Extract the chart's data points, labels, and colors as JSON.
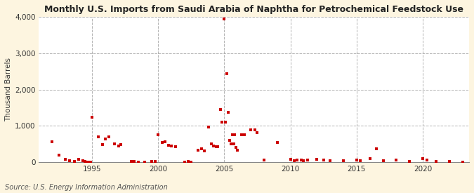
{
  "title": "Monthly U.S. Imports from Saudi Arabia of Naphtha for Petrochemical Feedstock Use",
  "ylabel": "Thousand Barrels",
  "source": "Source: U.S. Energy Information Administration",
  "background_color": "#FDF5E0",
  "plot_bg_color": "#FFFFFF",
  "marker_color": "#CC0000",
  "marker_size": 5,
  "ylim": [
    0,
    4000
  ],
  "yticks": [
    0,
    1000,
    2000,
    3000,
    4000
  ],
  "xlim_start": 1991.0,
  "xlim_end": 2023.5,
  "xticks": [
    1995,
    2000,
    2005,
    2010,
    2015,
    2020
  ],
  "data_points": [
    [
      1992.0,
      570
    ],
    [
      1992.5,
      200
    ],
    [
      1993.0,
      90
    ],
    [
      1993.3,
      50
    ],
    [
      1993.7,
      30
    ],
    [
      1994.0,
      80
    ],
    [
      1994.3,
      40
    ],
    [
      1994.5,
      20
    ],
    [
      1994.7,
      10
    ],
    [
      1994.9,
      5
    ],
    [
      1995.0,
      1240
    ],
    [
      1995.5,
      700
    ],
    [
      1995.8,
      480
    ],
    [
      1996.0,
      650
    ],
    [
      1996.3,
      700
    ],
    [
      1996.7,
      500
    ],
    [
      1997.0,
      450
    ],
    [
      1997.2,
      480
    ],
    [
      1998.0,
      30
    ],
    [
      1998.2,
      20
    ],
    [
      1998.5,
      10
    ],
    [
      1999.0,
      10
    ],
    [
      1999.5,
      15
    ],
    [
      1999.8,
      20
    ],
    [
      2000.0,
      760
    ],
    [
      2000.3,
      550
    ],
    [
      2000.5,
      560
    ],
    [
      2000.8,
      470
    ],
    [
      2001.0,
      450
    ],
    [
      2001.3,
      430
    ],
    [
      2002.0,
      10
    ],
    [
      2002.3,
      20
    ],
    [
      2002.5,
      10
    ],
    [
      2003.0,
      330
    ],
    [
      2003.3,
      380
    ],
    [
      2003.5,
      320
    ],
    [
      2003.8,
      970
    ],
    [
      2004.0,
      500
    ],
    [
      2004.2,
      450
    ],
    [
      2004.4,
      430
    ],
    [
      2004.5,
      430
    ],
    [
      2004.7,
      1450
    ],
    [
      2004.8,
      1100
    ],
    [
      2005.0,
      3940
    ],
    [
      2005.1,
      1100
    ],
    [
      2005.2,
      2430
    ],
    [
      2005.3,
      1380
    ],
    [
      2005.4,
      600
    ],
    [
      2005.5,
      500
    ],
    [
      2005.6,
      760
    ],
    [
      2005.7,
      500
    ],
    [
      2005.8,
      760
    ],
    [
      2005.9,
      410
    ],
    [
      2006.0,
      340
    ],
    [
      2006.3,
      750
    ],
    [
      2006.5,
      750
    ],
    [
      2007.0,
      900
    ],
    [
      2007.3,
      900
    ],
    [
      2007.5,
      820
    ],
    [
      2008.0,
      60
    ],
    [
      2009.0,
      540
    ],
    [
      2010.0,
      80
    ],
    [
      2010.3,
      50
    ],
    [
      2010.5,
      60
    ],
    [
      2010.8,
      70
    ],
    [
      2011.0,
      50
    ],
    [
      2011.3,
      70
    ],
    [
      2012.0,
      80
    ],
    [
      2012.5,
      70
    ],
    [
      2013.0,
      50
    ],
    [
      2014.0,
      50
    ],
    [
      2015.0,
      60
    ],
    [
      2015.3,
      50
    ],
    [
      2016.0,
      100
    ],
    [
      2016.5,
      380
    ],
    [
      2017.0,
      40
    ],
    [
      2018.0,
      60
    ],
    [
      2019.0,
      30
    ],
    [
      2020.0,
      100
    ],
    [
      2020.3,
      70
    ],
    [
      2021.0,
      30
    ],
    [
      2022.0,
      20
    ],
    [
      2023.0,
      10
    ]
  ]
}
